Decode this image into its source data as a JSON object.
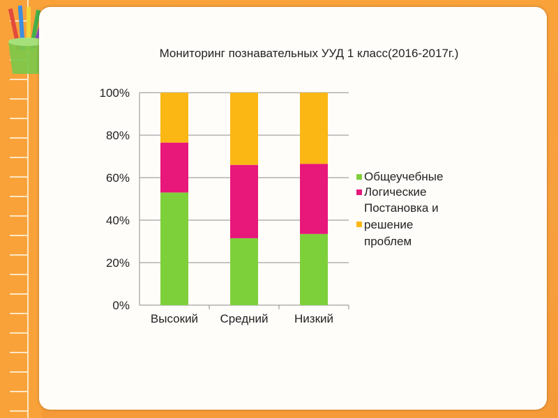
{
  "colors": {
    "background": "#f9a23a",
    "card": "#fffdfa",
    "green": "#7ed03b",
    "magenta": "#e8177a",
    "yellow": "#fbb714",
    "axis": "#8c8c8c",
    "text": "#222222"
  },
  "chart_data": {
    "type": "bar",
    "stacked": true,
    "percent": true,
    "title": "Мониторинг познавательных УУД 1 класс(2016-2017г.)",
    "categories": [
      "Высокий",
      "Средний",
      "Низкий"
    ],
    "series": [
      {
        "name": "Общеучебные",
        "color": "#7ed03b",
        "values": [
          53,
          31.5,
          33.5
        ]
      },
      {
        "name": "Логические",
        "color": "#e8177a",
        "values": [
          23.5,
          34.5,
          33
        ]
      },
      {
        "name": "Постановка и решение проблем",
        "color": "#fbb714",
        "values": [
          23.5,
          34,
          33.5
        ]
      }
    ],
    "ylim": [
      0,
      100
    ],
    "yticks": [
      "0%",
      "20%",
      "40%",
      "60%",
      "80%",
      "100%"
    ],
    "grid": true,
    "legend_position": "right",
    "legend": {
      "entry1": "Общеучебные",
      "entry2": "Логические",
      "entry3_line1": "Постановка и",
      "entry3_line2": "решение",
      "entry3_line3": "проблем"
    }
  }
}
